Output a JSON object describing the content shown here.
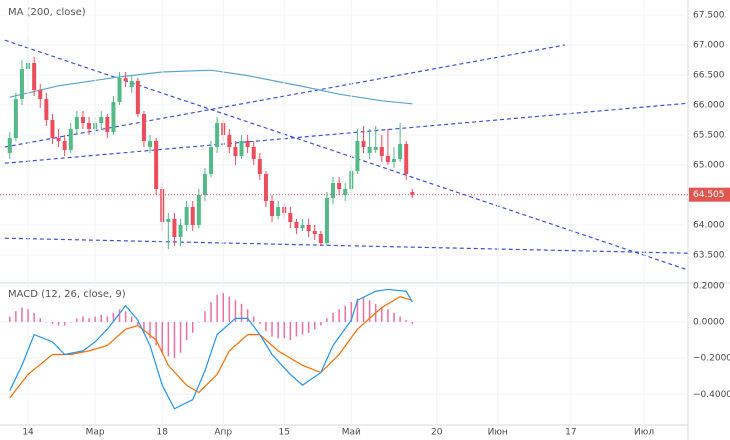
{
  "chart_data": [
    {
      "type": "candlestick",
      "title": "MA (200, close)",
      "xlim": [
        -4.6,
        108.2
      ],
      "ylim": [
        63.05,
        67.75
      ],
      "yticks": [
        {
          "value": 63.5,
          "label": "63.500"
        },
        {
          "value": 64,
          "label": "64.000"
        },
        {
          "value": 64.5,
          "label": "64.500"
        },
        {
          "value": 65,
          "label": "65.000"
        },
        {
          "value": 65.5,
          "label": "65.500"
        },
        {
          "value": 66,
          "label": "66.000"
        },
        {
          "value": 66.5,
          "label": "66.500"
        },
        {
          "value": 67,
          "label": "67.000"
        },
        {
          "value": 67.5,
          "label": "67.500"
        }
      ],
      "up_color": "#53b987",
      "down_color": "#eb4d5c",
      "x": [
        -3,
        -2,
        -1,
        0,
        1,
        2,
        3,
        4,
        5,
        6,
        7,
        8,
        9,
        10,
        11,
        12,
        13,
        14,
        15,
        16,
        17,
        18,
        19,
        20,
        21,
        22,
        23,
        24,
        25,
        26,
        27,
        28,
        29,
        30,
        31,
        32,
        33,
        34,
        35,
        36,
        37,
        38,
        39,
        40,
        41,
        42,
        43,
        44,
        45,
        46,
        47,
        48,
        49,
        50,
        51,
        52,
        53,
        54,
        55,
        56,
        57,
        58,
        59,
        60,
        61,
        62,
        63
      ],
      "ohlc": [
        [
          65.2,
          65.55,
          65.1,
          65.45
        ],
        [
          65.45,
          66.2,
          65.4,
          66.1
        ],
        [
          66.1,
          66.75,
          66.0,
          66.6
        ],
        [
          66.6,
          67.15,
          66.3,
          66.7
        ],
        [
          66.7,
          66.8,
          66.15,
          66.25
        ],
        [
          66.25,
          66.35,
          65.95,
          66.1
        ],
        [
          66.1,
          66.2,
          65.65,
          65.75
        ],
        [
          65.75,
          65.85,
          65.35,
          65.45
        ],
        [
          65.45,
          65.6,
          65.3,
          65.4
        ],
        [
          65.4,
          65.5,
          65.15,
          65.25
        ],
        [
          65.25,
          65.7,
          65.2,
          65.6
        ],
        [
          65.6,
          65.9,
          65.5,
          65.8
        ],
        [
          65.8,
          65.9,
          65.6,
          65.7
        ],
        [
          65.7,
          65.8,
          65.5,
          65.6
        ],
        [
          65.6,
          65.8,
          65.5,
          65.7
        ],
        [
          65.7,
          65.9,
          65.6,
          65.8
        ],
        [
          65.8,
          65.85,
          65.45,
          65.55
        ],
        [
          65.55,
          66.15,
          65.5,
          66.05
        ],
        [
          66.05,
          66.55,
          66.0,
          66.45
        ],
        [
          66.45,
          66.55,
          66.3,
          66.4
        ],
        [
          66.3,
          66.5,
          66.2,
          66.4
        ],
        [
          66.4,
          66.45,
          65.8,
          65.85
        ],
        [
          65.85,
          65.9,
          65.3,
          65.4
        ],
        [
          65.3,
          65.5,
          65.2,
          65.4
        ],
        [
          65.4,
          65.45,
          64.5,
          64.6
        ],
        [
          64.6,
          64.7,
          63.9,
          64.05
        ],
        [
          64.05,
          64.2,
          63.6,
          64.1
        ],
        [
          64.1,
          64.2,
          63.65,
          63.8
        ],
        [
          63.8,
          64.1,
          63.65,
          64.0
        ],
        [
          64.0,
          64.4,
          63.9,
          64.3
        ],
        [
          64.3,
          64.4,
          63.9,
          64.0
        ],
        [
          64.0,
          64.6,
          63.95,
          64.5
        ],
        [
          64.5,
          64.95,
          64.4,
          64.85
        ],
        [
          64.85,
          65.4,
          64.8,
          65.3
        ],
        [
          65.3,
          65.8,
          65.2,
          65.7
        ],
        [
          65.7,
          65.75,
          65.4,
          65.5
        ],
        [
          65.5,
          65.6,
          65.2,
          65.3
        ],
        [
          65.3,
          65.4,
          65.0,
          65.15
        ],
        [
          65.15,
          65.5,
          65.1,
          65.4
        ],
        [
          65.4,
          65.5,
          65.2,
          65.3
        ],
        [
          65.3,
          65.4,
          65.0,
          65.1
        ],
        [
          65.1,
          65.2,
          64.75,
          64.85
        ],
        [
          64.85,
          64.9,
          64.3,
          64.4
        ],
        [
          64.4,
          64.5,
          64.05,
          64.15
        ],
        [
          64.15,
          64.4,
          64.1,
          64.3
        ],
        [
          64.3,
          64.35,
          64.1,
          64.2
        ],
        [
          64.2,
          64.3,
          63.95,
          64.05
        ],
        [
          64.05,
          64.1,
          63.85,
          63.95
        ],
        [
          63.95,
          64.1,
          63.9,
          64.0
        ],
        [
          64.0,
          64.1,
          63.8,
          63.9
        ],
        [
          63.9,
          64.0,
          63.75,
          63.85
        ],
        [
          63.85,
          63.9,
          63.65,
          63.7
        ],
        [
          63.7,
          64.55,
          63.65,
          64.45
        ],
        [
          64.45,
          64.8,
          64.35,
          64.7
        ],
        [
          64.7,
          64.8,
          64.5,
          64.6
        ],
        [
          64.5,
          64.7,
          64.4,
          64.6
        ],
        [
          64.6,
          65.0,
          64.5,
          64.9
        ],
        [
          64.9,
          65.6,
          64.85,
          65.4
        ],
        [
          65.4,
          65.65,
          65.2,
          65.3
        ],
        [
          65.2,
          65.6,
          65.1,
          65.3
        ],
        [
          65.25,
          65.65,
          65.2,
          65.3
        ],
        [
          65.3,
          65.5,
          65.05,
          65.15
        ],
        [
          65.15,
          65.6,
          65.0,
          65.05
        ],
        [
          65.05,
          65.3,
          64.95,
          65.1
        ],
        [
          65.1,
          65.7,
          65.05,
          65.35
        ],
        [
          65.35,
          65.4,
          64.75,
          64.85
        ],
        [
          64.55,
          64.6,
          64.45,
          64.505
        ]
      ],
      "ma": {
        "color": "#5ba4cf",
        "x": [
          -3,
          5,
          15,
          22,
          30,
          36,
          45,
          51,
          58,
          63
        ],
        "values": [
          66.13,
          66.32,
          66.47,
          66.55,
          66.58,
          66.49,
          66.31,
          66.18,
          66.07,
          66.02
        ]
      },
      "trendline_color": "#3f51d9",
      "trendlines": [
        {
          "x": [
            -3.8,
            108.2
          ],
          "values": [
            67.08,
            63.25
          ]
        },
        {
          "x": [
            -3.8,
            88
          ],
          "values": [
            65.3,
            67.0
          ]
        },
        {
          "x": [
            -3.8,
            108.2
          ],
          "values": [
            65.03,
            66.03
          ]
        },
        {
          "x": [
            -3.8,
            108.2
          ],
          "values": [
            63.78,
            63.53
          ]
        }
      ],
      "price_line": 64.505,
      "price_color": "#e0554f"
    },
    {
      "type": "macd",
      "title": "MACD (12, 26, close, 9)",
      "xlim": [
        -4.6,
        108.2
      ],
      "ylim": [
        -0.57,
        0.21
      ],
      "yticks": [
        {
          "value": -0.4,
          "label": "−0.4000"
        },
        {
          "value": -0.2,
          "label": "−0.2000"
        },
        {
          "value": 0,
          "label": "0.0000"
        },
        {
          "value": 0.2,
          "label": "0.2000"
        }
      ],
      "xticks": [
        {
          "value": 0,
          "label": "14"
        },
        {
          "value": 11,
          "label": "Мар"
        },
        {
          "value": 22,
          "label": "18"
        },
        {
          "value": 32,
          "label": "Апр"
        },
        {
          "value": 42,
          "label": "15"
        },
        {
          "value": 53,
          "label": "Май"
        },
        {
          "value": 67,
          "label": "20"
        },
        {
          "value": 77,
          "label": "Июн"
        },
        {
          "value": 89,
          "label": "17"
        },
        {
          "value": 101,
          "label": "Июл"
        }
      ],
      "histogram": {
        "color": "#ef6fa3",
        "x": [
          -3,
          -2,
          -1,
          0,
          1,
          2,
          3,
          4,
          5,
          6,
          7,
          8,
          9,
          10,
          11,
          12,
          13,
          14,
          15,
          16,
          17,
          18,
          19,
          20,
          21,
          22,
          23,
          24,
          25,
          26,
          27,
          28,
          29,
          30,
          31,
          32,
          33,
          34,
          35,
          36,
          37,
          38,
          39,
          40,
          41,
          42,
          43,
          44,
          45,
          46,
          47,
          48,
          49,
          50,
          51,
          52,
          53,
          54,
          55,
          56,
          57,
          58,
          59,
          60,
          61,
          62,
          63
        ],
        "values": [
          0.03,
          0.06,
          0.08,
          0.07,
          0.05,
          0.02,
          0.0,
          -0.01,
          -0.02,
          -0.02,
          0.0,
          0.02,
          0.03,
          0.02,
          0.03,
          0.04,
          0.03,
          0.05,
          0.07,
          0.06,
          0.03,
          -0.02,
          -0.06,
          -0.09,
          -0.13,
          -0.17,
          -0.19,
          -0.2,
          -0.17,
          -0.1,
          -0.06,
          0.0,
          0.06,
          0.11,
          0.15,
          0.16,
          0.14,
          0.12,
          0.1,
          0.07,
          0.03,
          -0.01,
          -0.05,
          -0.08,
          -0.09,
          -0.09,
          -0.1,
          -0.08,
          -0.07,
          -0.06,
          -0.04,
          -0.02,
          0.02,
          0.05,
          0.07,
          0.09,
          0.11,
          0.13,
          0.14,
          0.12,
          0.1,
          0.08,
          0.07,
          0.05,
          0.03,
          0.01,
          -0.01
        ]
      },
      "macd": {
        "color": "#2196f3",
        "x": [
          -3,
          -1,
          1,
          4,
          6,
          9,
          11,
          13,
          16,
          18,
          20,
          22,
          24,
          27,
          29,
          31,
          34,
          36,
          38,
          40,
          43,
          45,
          48,
          50,
          53,
          54,
          57,
          59,
          62,
          63
        ],
        "values": [
          -0.38,
          -0.24,
          -0.07,
          -0.11,
          -0.18,
          -0.16,
          -0.11,
          -0.04,
          0.09,
          0.01,
          -0.13,
          -0.35,
          -0.48,
          -0.43,
          -0.27,
          -0.07,
          0.02,
          0.02,
          -0.07,
          -0.18,
          -0.29,
          -0.35,
          -0.28,
          -0.13,
          0.01,
          0.12,
          0.17,
          0.18,
          0.17,
          0.11
        ]
      },
      "signal": {
        "color": "#ff6d00",
        "x": [
          -3,
          0,
          4,
          7,
          10,
          13,
          16,
          18,
          21,
          23,
          26,
          28,
          31,
          33,
          36,
          38,
          41,
          45,
          48,
          51,
          54,
          58,
          61,
          63
        ],
        "values": [
          -0.42,
          -0.29,
          -0.18,
          -0.18,
          -0.16,
          -0.13,
          -0.04,
          -0.02,
          -0.1,
          -0.24,
          -0.35,
          -0.39,
          -0.29,
          -0.16,
          -0.07,
          -0.07,
          -0.16,
          -0.24,
          -0.28,
          -0.18,
          -0.04,
          0.08,
          0.14,
          0.12
        ]
      }
    }
  ]
}
